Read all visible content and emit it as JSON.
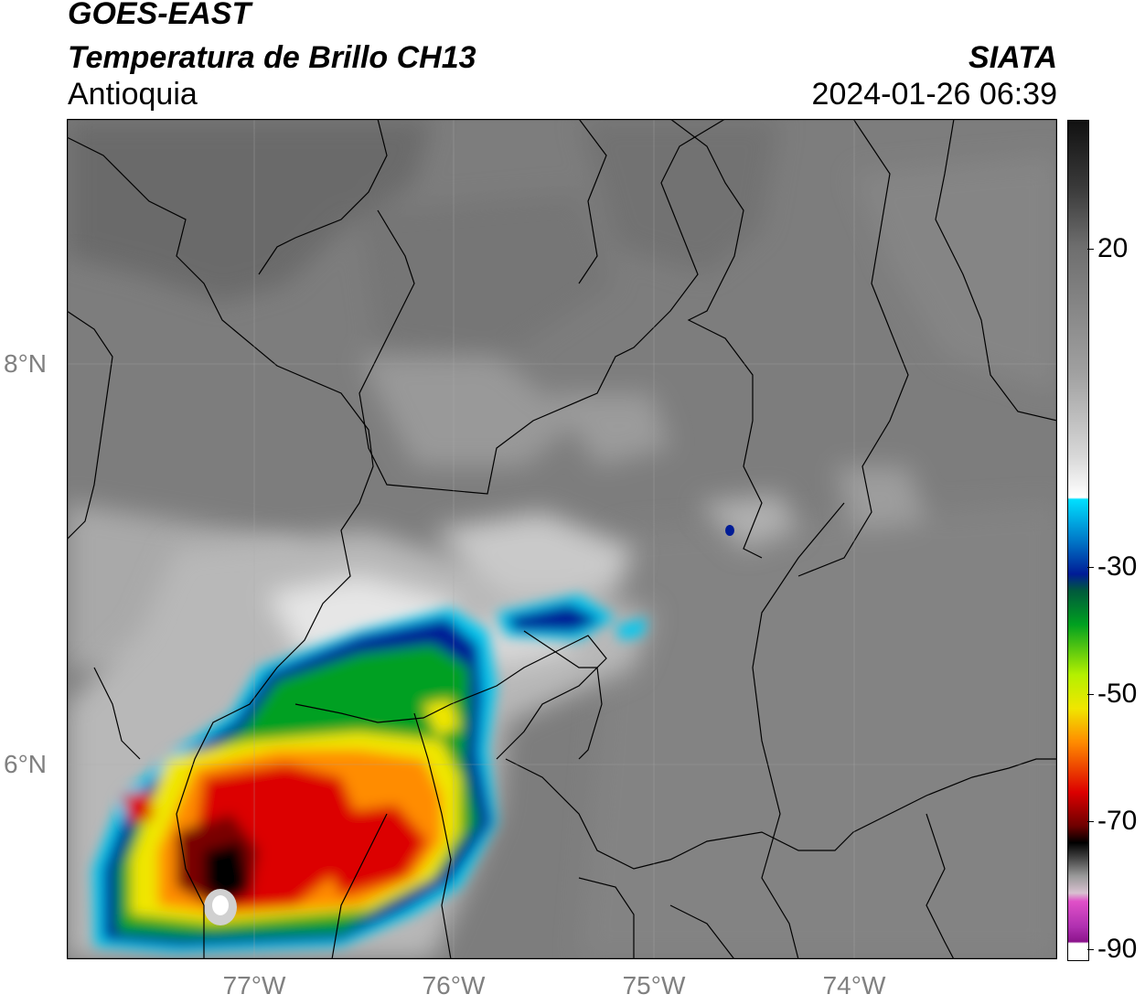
{
  "header": {
    "satellite": "GOES-EAST",
    "product": "Temperatura de Brillo CH13",
    "region": "Antioquia",
    "organization": "SIATA",
    "timestamp": "2024-01-26 06:39"
  },
  "map": {
    "latitude_labels": [
      "8°N",
      "6°N"
    ],
    "longitude_labels": [
      "77°W",
      "76°W",
      "75°W",
      "74°W"
    ]
  },
  "colorbar": {
    "tick_labels": [
      "20",
      "-30",
      "-50",
      "-70",
      "-90"
    ],
    "colors": {
      "warm_gray": "#8a8a8a",
      "white": "#ffffff",
      "cyan": "#00c8f0",
      "blue": "#001c96",
      "green": "#00a020",
      "yellow": "#f0e600",
      "orange": "#ff8c00",
      "red": "#dc0000",
      "black": "#000000",
      "magenta": "#e050c8",
      "purple": "#8c148c"
    }
  }
}
